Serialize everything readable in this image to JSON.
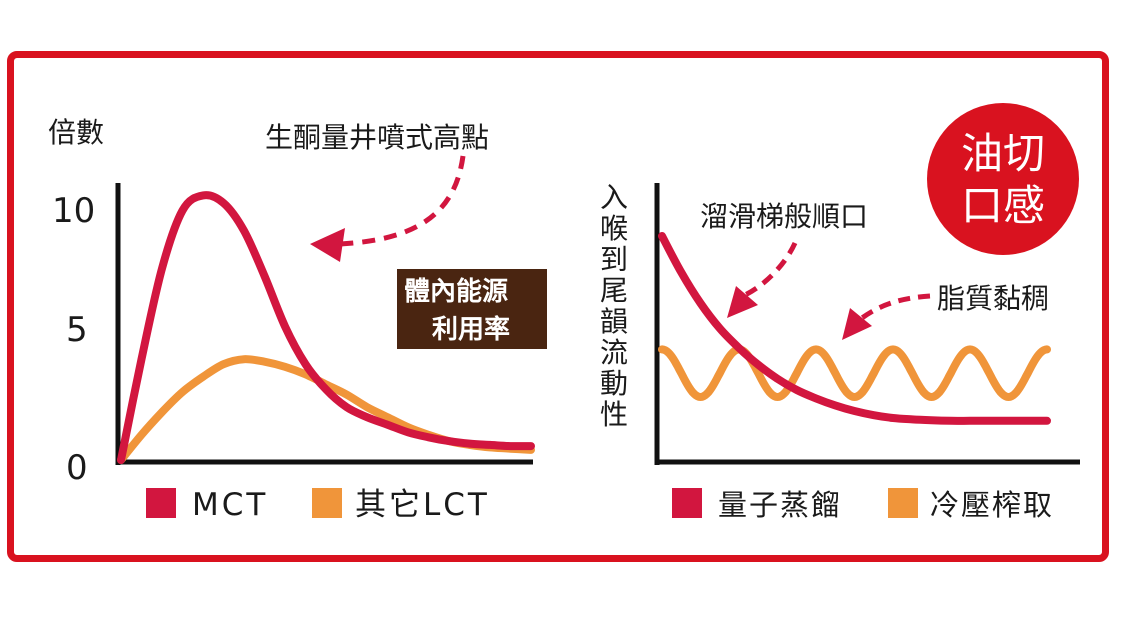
{
  "colors": {
    "frame": "#d9121f",
    "red": "#d2163f",
    "orange": "#f0953a",
    "brown": "#4a2511",
    "axis": "#111111"
  },
  "left_chart": {
    "ylabel": "倍數",
    "callout": "生酮量井噴式高點",
    "box_text": [
      "體內能源",
      "利用率"
    ],
    "legend": [
      "MCT",
      "其它LCT"
    ]
  },
  "right_chart": {
    "ylabel": "入喉到尾韻流動性",
    "callout_top": "溜滑梯般順口",
    "callout_right": "脂質黏稠",
    "badge": [
      "油切",
      "口感"
    ],
    "legend": [
      "量子蒸餾",
      "冷壓榨取"
    ]
  },
  "chart_data": [
    {
      "type": "line",
      "ylabel": "倍數",
      "ylim": [
        0,
        11.5
      ],
      "yticks": [
        0,
        5,
        10
      ],
      "x": [
        0,
        0.5,
        1,
        1.5,
        2,
        2.5,
        3,
        3.5,
        4,
        4.5,
        5,
        5.5,
        6,
        6.5,
        7,
        7.5,
        8,
        8.5,
        9,
        9.5,
        10
      ],
      "series": [
        {
          "name": "MCT",
          "color": "#d2163f",
          "values": [
            0,
            4.0,
            7.6,
            9.9,
            10.5,
            10.2,
            9.1,
            7.3,
            5.3,
            3.8,
            2.8,
            2.1,
            1.7,
            1.4,
            1.1,
            0.9,
            0.75,
            0.65,
            0.6,
            0.55,
            0.55
          ]
        },
        {
          "name": "其它LCT",
          "color": "#f0953a",
          "values": [
            0,
            1.0,
            1.9,
            2.7,
            3.3,
            3.8,
            4.0,
            3.9,
            3.7,
            3.4,
            3.0,
            2.6,
            2.1,
            1.7,
            1.3,
            1.0,
            0.75,
            0.6,
            0.5,
            0.45,
            0.4
          ]
        }
      ],
      "legend_position": "bottom"
    },
    {
      "type": "line",
      "ylabel": "入喉到尾韻流動性",
      "ylim": [
        0,
        10
      ],
      "x": [
        0,
        0.5,
        1,
        1.5,
        2,
        2.5,
        3,
        3.5,
        4,
        4.5,
        5,
        5.5,
        6,
        6.5,
        7,
        7.5,
        8,
        8.5,
        9,
        9.5,
        10
      ],
      "series": [
        {
          "name": "量子蒸餾",
          "color": "#d2163f",
          "values": [
            8.0,
            6.7,
            5.6,
            4.7,
            4.0,
            3.4,
            2.9,
            2.5,
            2.2,
            1.95,
            1.75,
            1.6,
            1.5,
            1.45,
            1.42,
            1.4,
            1.4,
            1.4,
            1.4,
            1.4,
            1.4
          ]
        },
        {
          "name": "冷壓榨取",
          "color": "#f0953a",
          "shape": "wave",
          "baseline": 3.1,
          "amplitude": 0.85,
          "cycles": 5
        }
      ],
      "legend_position": "bottom"
    }
  ]
}
